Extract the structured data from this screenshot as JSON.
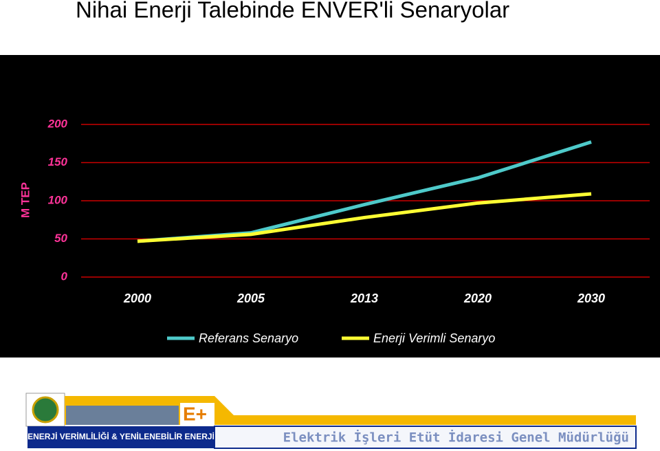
{
  "chart_data": {
    "type": "line",
    "title": "Nihai Enerji Talebinde ENVER'li Senaryolar",
    "y_label": "M TEP",
    "categories": [
      "2000",
      "2005",
      "2013",
      "2020",
      "2030"
    ],
    "series": [
      {
        "name": "Referans Senaryo",
        "color": "#4ecaca",
        "values": [
          47,
          58,
          95,
          130,
          177
        ]
      },
      {
        "name": "Enerji Verimli Senaryo",
        "color": "#ffff33",
        "values": [
          47,
          56,
          78,
          97,
          109
        ]
      }
    ],
    "ylim": [
      0,
      200
    ],
    "yticks": [
      0,
      50,
      100,
      150,
      200
    ],
    "grid": true
  },
  "footer": {
    "left": "ENERJİ VERİMLİLİĞİ & YENİLENEBİLİR ENERJİ",
    "right": "Elektrik İşleri Etüt İdaresi Genel Müdürlüğü"
  }
}
